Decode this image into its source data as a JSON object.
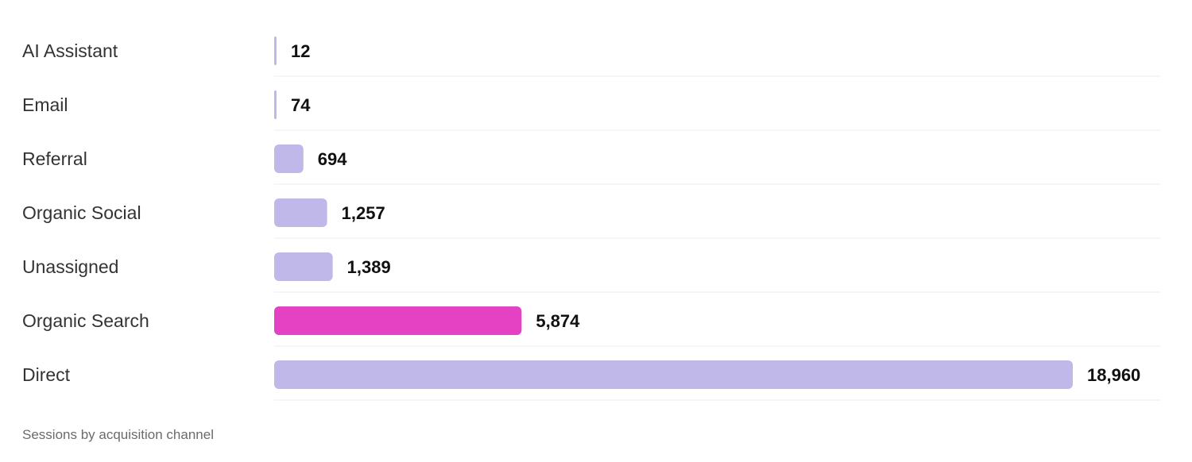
{
  "chart_data": {
    "type": "bar",
    "orientation": "horizontal",
    "categories": [
      "AI Assistant",
      "Email",
      "Referral",
      "Organic Social",
      "Unassigned",
      "Organic Search",
      "Direct"
    ],
    "values": [
      12,
      74,
      694,
      1257,
      1389,
      5874,
      18960
    ],
    "value_labels": [
      "12",
      "74",
      "694",
      "1,257",
      "1,389",
      "5,874",
      "18,960"
    ],
    "highlighted": "Organic Search",
    "colors": {
      "bar": "#c0b8e8",
      "highlight": "#e442c3"
    },
    "xlim": [
      0,
      18960
    ],
    "grid": false,
    "caption": "Sessions by acquisition channel"
  }
}
